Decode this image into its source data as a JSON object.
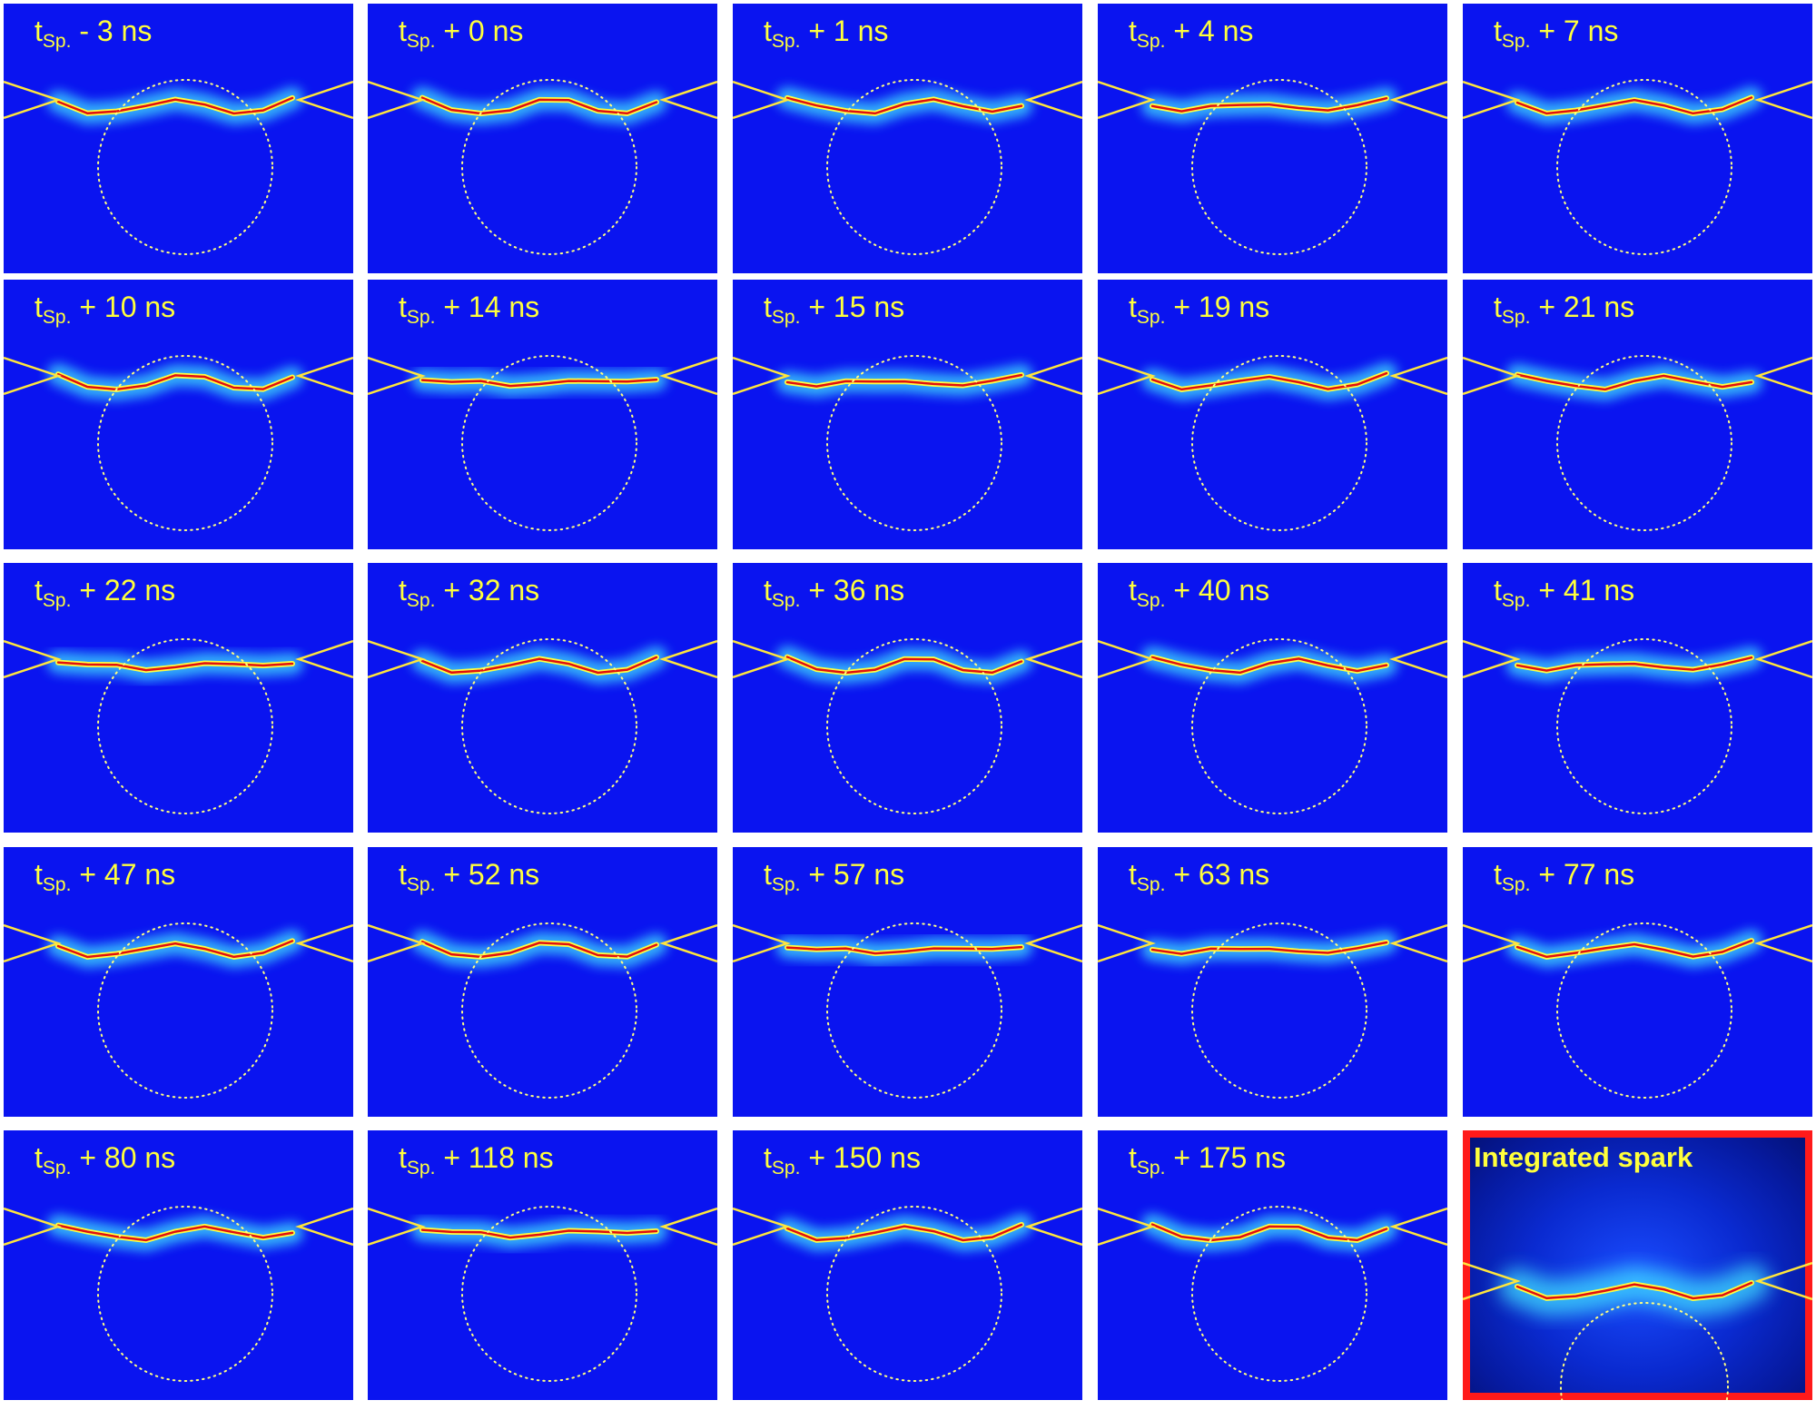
{
  "panels": [
    {
      "t": "- 3 ns"
    },
    {
      "t": "+ 0 ns"
    },
    {
      "t": "+ 1 ns"
    },
    {
      "t": "+ 4 ns"
    },
    {
      "t": "+ 7 ns"
    },
    {
      "t": "+ 10 ns"
    },
    {
      "t": "+ 14 ns"
    },
    {
      "t": "+ 15 ns"
    },
    {
      "t": "+ 19 ns"
    },
    {
      "t": "+ 21 ns"
    },
    {
      "t": "+ 22 ns"
    },
    {
      "t": "+ 32 ns"
    },
    {
      "t": "+ 36 ns"
    },
    {
      "t": "+ 40 ns"
    },
    {
      "t": "+ 41 ns"
    },
    {
      "t": "+ 47 ns"
    },
    {
      "t": "+ 52 ns"
    },
    {
      "t": "+ 57 ns"
    },
    {
      "t": "+ 63 ns"
    },
    {
      "t": "+ 77 ns"
    },
    {
      "t": "+ 80 ns"
    },
    {
      "t": "+ 118 ns"
    },
    {
      "t": "+ 150 ns"
    },
    {
      "t": "+ 175 ns"
    }
  ],
  "time_prefix": "t",
  "time_subscript": "Sp.",
  "final_panel_label": "Integrated spark",
  "colors": {
    "background": "#0a14f0",
    "label": "#ffff3c",
    "electrode": "#ffe63c",
    "circle": "#ffff80",
    "spark_core": "#e01010",
    "spark_mid": "#ffff40",
    "spark_glow": "#40e0ff",
    "highlight_frame": "#ff1a1a"
  }
}
